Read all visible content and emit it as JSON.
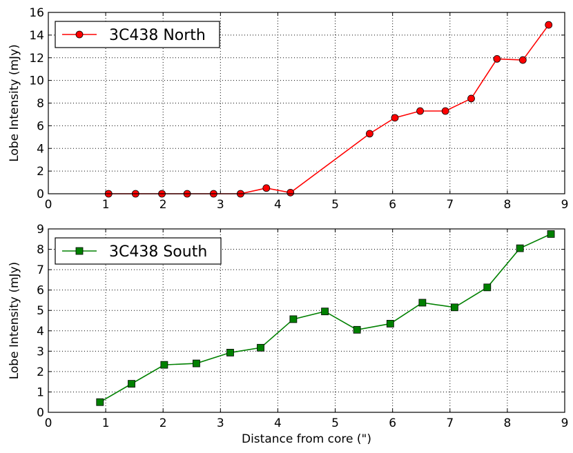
{
  "chart_data": [
    {
      "type": "line",
      "xlabel": "",
      "ylabel": "Lobe Intensity (mJy)",
      "xlim": [
        0,
        9
      ],
      "ylim": [
        0,
        16
      ],
      "xticks": [
        0,
        1,
        2,
        3,
        4,
        5,
        6,
        7,
        8,
        9
      ],
      "yticks": [
        0,
        2,
        4,
        6,
        8,
        10,
        12,
        14,
        16
      ],
      "grid": true,
      "legend_position": "top-left",
      "series": [
        {
          "name": "3C438 North",
          "color": "#ff0000",
          "marker": "circle",
          "marker_fill": "#ff0000",
          "x": [
            1.05,
            1.52,
            1.98,
            2.42,
            2.88,
            3.35,
            3.8,
            4.22,
            5.6,
            6.04,
            6.48,
            6.92,
            7.37,
            7.82,
            8.27,
            8.72
          ],
          "y": [
            0.0,
            0.0,
            0.0,
            0.0,
            0.0,
            0.0,
            0.5,
            0.1,
            5.3,
            6.7,
            7.3,
            7.3,
            8.4,
            11.9,
            11.8,
            14.9
          ]
        }
      ]
    },
    {
      "type": "line",
      "xlabel": "Distance from core (\")",
      "ylabel": "Lobe Intensity (mJy)",
      "xlim": [
        0,
        9
      ],
      "ylim": [
        0,
        9
      ],
      "xticks": [
        0,
        1,
        2,
        3,
        4,
        5,
        6,
        7,
        8,
        9
      ],
      "yticks": [
        0,
        1,
        2,
        3,
        4,
        5,
        6,
        7,
        8,
        9
      ],
      "grid": true,
      "legend_position": "top-left",
      "series": [
        {
          "name": "3C438 South",
          "color": "#008000",
          "marker": "square",
          "marker_fill": "#008000",
          "x": [
            0.9,
            1.45,
            2.02,
            2.58,
            3.17,
            3.7,
            4.27,
            4.82,
            5.38,
            5.96,
            6.52,
            7.08,
            7.65,
            8.22,
            8.76
          ],
          "y": [
            0.5,
            1.4,
            2.33,
            2.4,
            2.93,
            3.17,
            4.57,
            4.95,
            4.05,
            4.35,
            5.38,
            5.15,
            6.13,
            8.05,
            8.75
          ]
        }
      ]
    }
  ]
}
